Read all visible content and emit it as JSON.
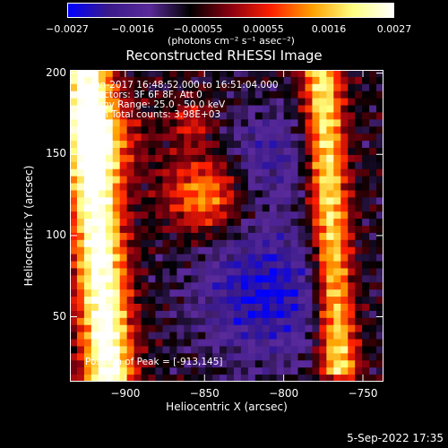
{
  "chart_data": {
    "type": "heatmap",
    "title": "Reconstructed RHESSI Image",
    "xlabel": "Heliocentric X (arcsec)",
    "ylabel": "Heliocentric Y (arcsec)",
    "xlim": [
      -935,
      -737
    ],
    "ylim": [
      10,
      202
    ],
    "x_ticks": [
      -900,
      -850,
      -800,
      -750
    ],
    "x_tick_labels": [
      "−900",
      "−850",
      "−800",
      "−750"
    ],
    "y_ticks": [
      50,
      100,
      150,
      200
    ],
    "y_tick_labels": [
      "50",
      "100",
      "150",
      "200"
    ],
    "colorbar": {
      "ticks": [
        -0.0027,
        -0.0016,
        -0.00055,
        0.00055,
        0.0016,
        0.0027
      ],
      "tick_labels": [
        "−0.0027",
        "−0.0016",
        "−0.00055",
        "0.00055",
        "0.0016",
        "0.0027"
      ],
      "unit_label": "(photons cm⁻² s⁻¹ asec⁻²)",
      "range": [
        -0.0027,
        0.0027
      ],
      "colors": [
        "#0000ff",
        "#3a1a8a",
        "#5a2a9a",
        "#000000",
        "#8a0010",
        "#ff2000",
        "#ffa000",
        "#ffff80",
        "#ffffff"
      ]
    },
    "annotations": [
      "2-Jun-2017 16:48:52.000 to 16:51:04.000",
      "Detectors: 3F 6F 8F, Att 0",
      "Energy Range: 25.0 - 50.0 keV",
      "Clean     Total counts: 3.98E+03"
    ],
    "peak_label": "Position of Peak = [-913,145]",
    "peak": [
      -913,
      145
    ],
    "features": [
      {
        "x": -915,
        "y": 150,
        "value": 0.0027
      },
      {
        "x": -895,
        "y": 80,
        "value": 0.0016
      },
      {
        "x": -850,
        "y": 130,
        "value": 0.0014
      },
      {
        "x": -772,
        "y": 108,
        "value": 0.002
      },
      {
        "x": -810,
        "y": 60,
        "value": -0.0022
      }
    ]
  },
  "footer": {
    "date": "5-Sep-2022 17:35"
  }
}
